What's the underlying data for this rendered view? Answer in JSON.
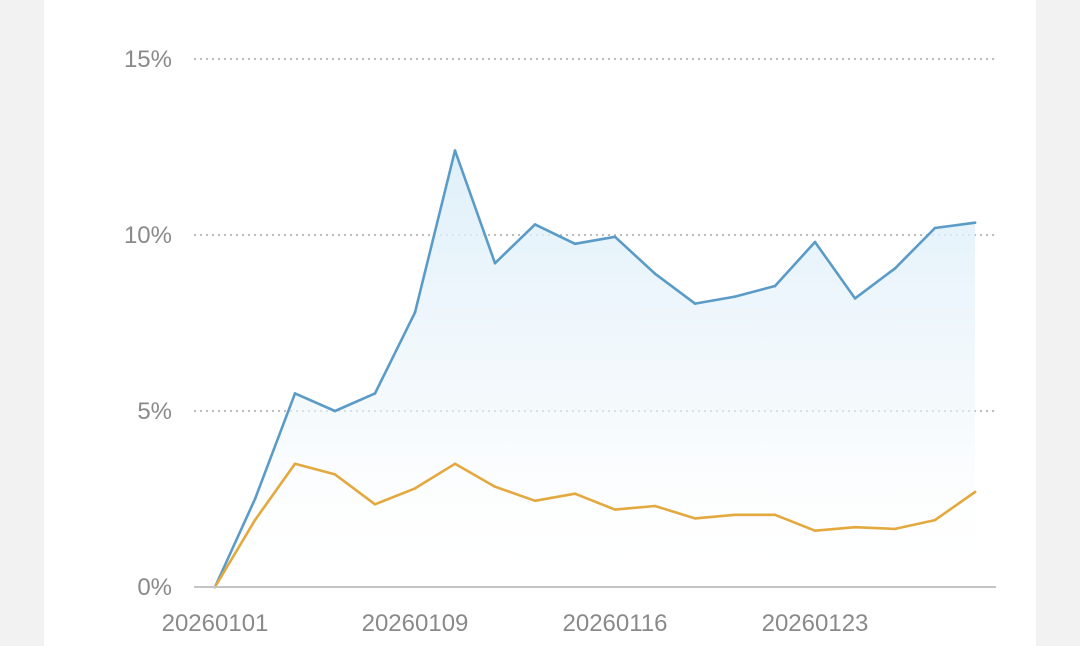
{
  "chart_data": {
    "type": "line",
    "y_tick_labels": [
      "0%",
      "5%",
      "10%",
      "15%"
    ],
    "y_ticks": [
      0,
      5,
      10,
      15
    ],
    "x_tick_labels": [
      "20260101",
      "20260109",
      "20260116",
      "20260123"
    ],
    "x_tick_indices": [
      0,
      5,
      10,
      15
    ],
    "ylim": [
      0,
      15
    ],
    "grid": true,
    "series": [
      {
        "color": "#5b9bc8",
        "fill": true,
        "values": [
          0,
          2.5,
          5.5,
          5.0,
          5.5,
          7.8,
          12.4,
          9.2,
          10.3,
          9.75,
          9.95,
          8.9,
          8.05,
          8.25,
          8.55,
          9.8,
          8.2,
          9.05,
          10.2,
          10.35
        ]
      },
      {
        "color": "#e3a93f",
        "fill": false,
        "values": [
          0,
          1.9,
          3.5,
          3.2,
          2.35,
          2.8,
          3.5,
          2.85,
          2.45,
          2.65,
          2.2,
          2.3,
          1.95,
          2.05,
          2.05,
          1.6,
          1.7,
          1.65,
          1.9,
          2.7
        ]
      }
    ]
  }
}
